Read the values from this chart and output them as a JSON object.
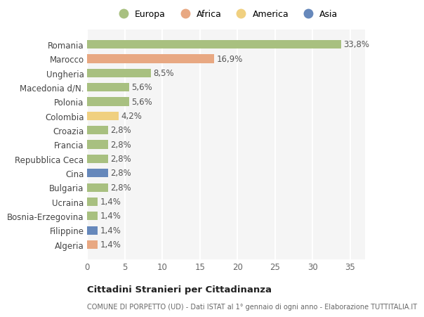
{
  "countries": [
    "Algeria",
    "Filippine",
    "Bosnia-Erzegovina",
    "Ucraina",
    "Bulgaria",
    "Cina",
    "Repubblica Ceca",
    "Francia",
    "Croazia",
    "Colombia",
    "Polonia",
    "Macedonia d/N.",
    "Ungheria",
    "Marocco",
    "Romania"
  ],
  "values": [
    1.4,
    1.4,
    1.4,
    1.4,
    2.8,
    2.8,
    2.8,
    2.8,
    2.8,
    4.2,
    5.6,
    5.6,
    8.5,
    16.9,
    33.8
  ],
  "labels": [
    "1,4%",
    "1,4%",
    "1,4%",
    "1,4%",
    "2,8%",
    "2,8%",
    "2,8%",
    "2,8%",
    "2,8%",
    "4,2%",
    "5,6%",
    "5,6%",
    "8,5%",
    "16,9%",
    "33,8%"
  ],
  "continents": [
    "Africa",
    "Asia",
    "Europa",
    "Europa",
    "Europa",
    "Asia",
    "Europa",
    "Europa",
    "Europa",
    "America",
    "Europa",
    "Europa",
    "Europa",
    "Africa",
    "Europa"
  ],
  "continent_colors": {
    "Europa": "#a8c080",
    "Africa": "#e8a882",
    "America": "#f0d080",
    "Asia": "#6688bb"
  },
  "legend_order": [
    "Europa",
    "Africa",
    "America",
    "Asia"
  ],
  "plot_bg_color": "#f5f5f5",
  "fig_bg_color": "#ffffff",
  "grid_color": "#ffffff",
  "title1": "Cittadini Stranieri per Cittadinanza",
  "title2": "COMUNE DI PORPETTO (UD) - Dati ISTAT al 1° gennaio di ogni anno - Elaborazione TUTTITALIA.IT",
  "xlim": [
    0,
    37
  ],
  "xticks": [
    0,
    5,
    10,
    15,
    20,
    25,
    30,
    35
  ]
}
